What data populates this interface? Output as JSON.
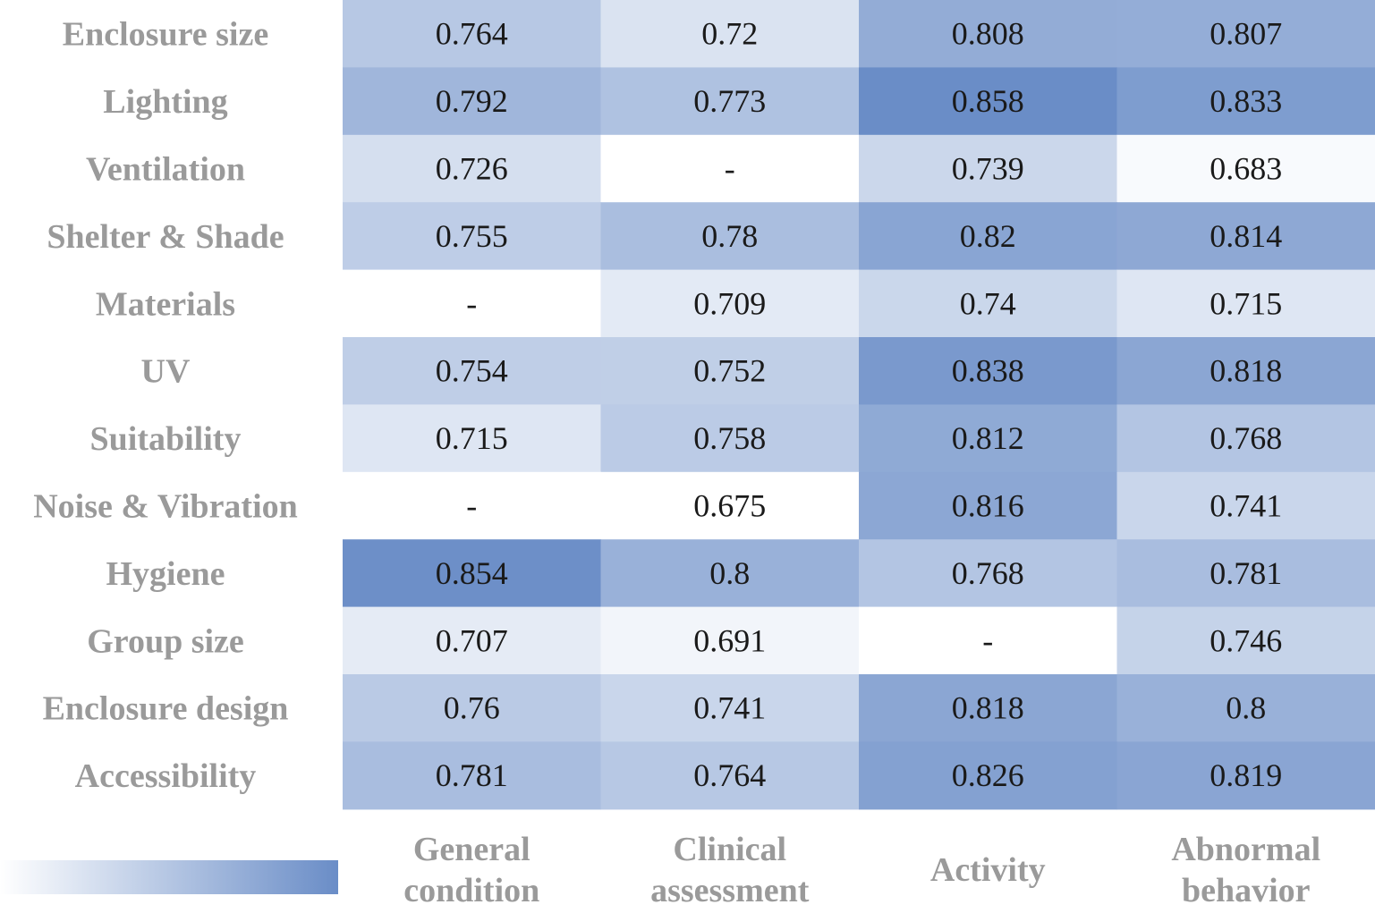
{
  "chart_data": {
    "type": "heatmap",
    "title": "",
    "rows": [
      "Enclosure size",
      "Lighting",
      "Ventilation",
      "Shelter & Shade",
      "Materials",
      "UV",
      "Suitability",
      "Noise & Vibration",
      "Hygiene",
      "Group size",
      "Enclosure design",
      "Accessibility"
    ],
    "columns": [
      [
        "General",
        "condition"
      ],
      [
        "Clinical",
        "assessment"
      ],
      [
        "Activity"
      ],
      [
        "Abnormal",
        "behavior"
      ]
    ],
    "values": [
      [
        "0.764",
        "0.72",
        "0.808",
        "0.807"
      ],
      [
        "0.792",
        "0.773",
        "0.858",
        "0.833"
      ],
      [
        "0.726",
        "-",
        "0.739",
        "0.683"
      ],
      [
        "0.755",
        "0.78",
        "0.82",
        "0.814"
      ],
      [
        "-",
        "0.709",
        "0.74",
        "0.715"
      ],
      [
        "0.754",
        "0.752",
        "0.838",
        "0.818"
      ],
      [
        "0.715",
        "0.758",
        "0.812",
        "0.768"
      ],
      [
        "-",
        "0.675",
        "0.816",
        "0.741"
      ],
      [
        "0.854",
        "0.8",
        "0.768",
        "0.781"
      ],
      [
        "0.707",
        "0.691",
        "-",
        "0.746"
      ],
      [
        "0.76",
        "0.741",
        "0.818",
        "0.8"
      ],
      [
        "0.781",
        "0.764",
        "0.826",
        "0.819"
      ]
    ],
    "color_scale": {
      "min": 0.675,
      "max": 0.858,
      "low_color": "#ffffff",
      "high_color": "#6a8dc7",
      "missing_color": "#ffffff"
    },
    "legend": "bottom-left gradient bar"
  }
}
